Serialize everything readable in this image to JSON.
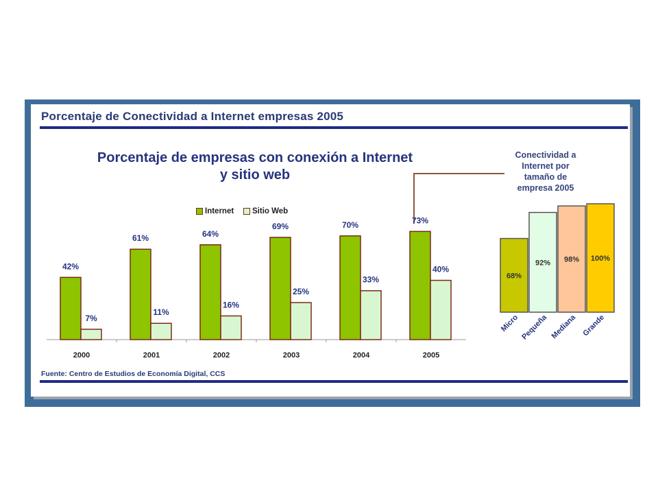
{
  "page": {
    "title": "Porcentaje de Conectividad a Internet empresas 2005",
    "source": "Fuente: Centro de Estudios de Economía Digital, CCS"
  },
  "colors": {
    "frame": "#3f6d9a",
    "title_rule": "#1d2b86",
    "internet": "#8fc400",
    "sitio_web": "#d8f7d0",
    "bar_border": "#7b2a1a"
  },
  "chart_data": [
    {
      "type": "bar",
      "title": "Porcentaje de empresas con conexión a Internet y sitio web",
      "title_lines": [
        "Porcentaje de empresas con conexión a Internet",
        "y sitio web"
      ],
      "categories": [
        "2000",
        "2001",
        "2002",
        "2003",
        "2004",
        "2005"
      ],
      "series": [
        {
          "name": "Internet",
          "color": "#8fc400",
          "values": [
            42,
            61,
            64,
            69,
            70,
            73
          ],
          "labels": [
            "42%",
            "61%",
            "64%",
            "69%",
            "70%",
            "73%"
          ]
        },
        {
          "name": "Sitio Web",
          "color": "#d8f7d0",
          "values": [
            7,
            11,
            16,
            25,
            33,
            40
          ],
          "labels": [
            "7%",
            "11%",
            "16%",
            "25%",
            "33%",
            "40%"
          ]
        }
      ],
      "ylim": [
        0,
        80
      ],
      "legend": "top-center",
      "grid": false
    },
    {
      "type": "bar",
      "title": "Conectividad a Internet por tamaño de empresa 2005",
      "title_lines": [
        "Conectividad a",
        "Internet por",
        "tamaño de",
        "empresa 2005"
      ],
      "categories": [
        "Micro",
        "Pequeña",
        "Mediana",
        "Grande"
      ],
      "values": [
        68,
        92,
        98,
        100
      ],
      "labels": [
        "68%",
        "92%",
        "98%",
        "100%"
      ],
      "colors": [
        "#c8c800",
        "#e2fde6",
        "#ffc69a",
        "#ffcc00"
      ],
      "ylim": [
        0,
        100
      ],
      "grid": false
    }
  ]
}
